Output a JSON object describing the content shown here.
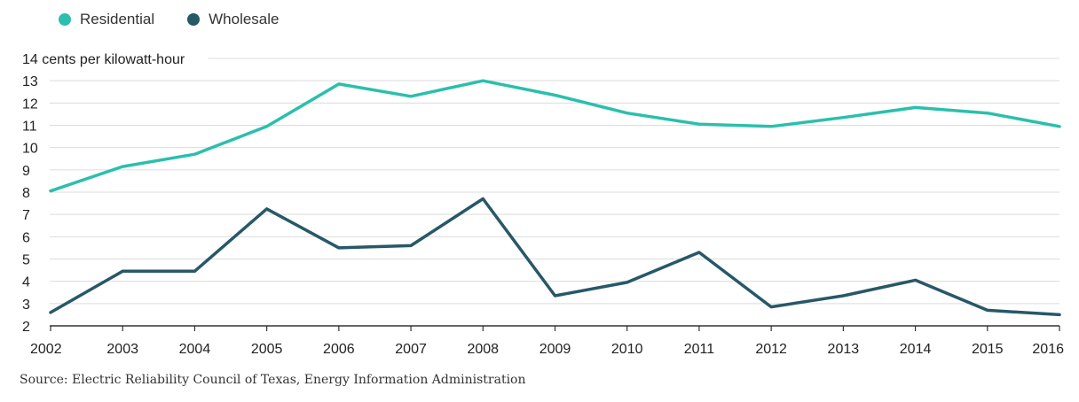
{
  "chart_data": {
    "type": "line",
    "x": [
      2002,
      2003,
      2004,
      2005,
      2006,
      2007,
      2008,
      2009,
      2010,
      2011,
      2012,
      2013,
      2014,
      2015,
      2016
    ],
    "x_tick_labels": [
      "2002",
      "2003",
      "2004",
      "2005",
      "2006",
      "2007",
      "2008",
      "2009",
      "2010",
      "2011",
      "2012",
      "2013",
      "2014",
      "2015",
      "2016"
    ],
    "series": [
      {
        "name": "Residential",
        "color": "#2bbfad",
        "values": [
          8.05,
          9.15,
          9.7,
          10.95,
          12.85,
          12.3,
          13.0,
          12.35,
          11.55,
          11.05,
          10.95,
          11.35,
          11.8,
          11.55,
          10.95
        ]
      },
      {
        "name": "Wholesale",
        "color": "#275868",
        "values": [
          2.6,
          4.45,
          4.45,
          7.25,
          5.5,
          5.6,
          7.7,
          3.35,
          3.95,
          5.3,
          2.85,
          3.35,
          4.05,
          2.7,
          2.5
        ]
      }
    ],
    "ylim": [
      2,
      14
    ],
    "y_ticks": [
      2,
      3,
      4,
      5,
      6,
      7,
      8,
      9,
      10,
      11,
      12,
      13,
      14
    ],
    "y_top_label_suffix": " cents per kilowatt-hour",
    "grid": true,
    "legend_position": "top-left",
    "source": "Source: Electric Reliability Council of Texas, Energy Information Administration"
  }
}
